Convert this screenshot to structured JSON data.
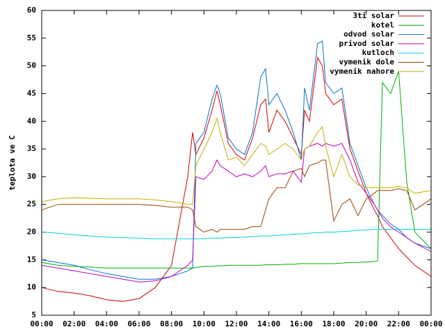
{
  "chart_data": {
    "type": "line",
    "ylabel": "teplota ve C",
    "x": [
      0,
      1,
      2,
      3,
      4,
      5,
      6,
      7,
      8,
      8.5,
      9,
      9.3,
      9.5,
      10,
      10.5,
      10.8,
      11,
      11.5,
      12,
      12.5,
      13,
      13.5,
      13.8,
      14,
      14.5,
      15,
      15.5,
      16,
      16.2,
      16.5,
      17,
      17.3,
      17.5,
      18,
      18.5,
      19,
      19.5,
      20,
      20.5,
      20.7,
      21,
      21.5,
      22,
      22.5,
      23,
      24
    ],
    "series": [
      {
        "name": "3ti solar",
        "color": "#d00000",
        "values": [
          10,
          9.3,
          9,
          8.5,
          7.8,
          7.5,
          8,
          10,
          14,
          22,
          30,
          38,
          34,
          37,
          42,
          45.5,
          43,
          36,
          34,
          33,
          37,
          43,
          44,
          38,
          42,
          40,
          37,
          34,
          42,
          40,
          51.5,
          50,
          45,
          43,
          44,
          35,
          31,
          27,
          24,
          23,
          21,
          19,
          17,
          15.5,
          14,
          12
        ]
      },
      {
        "name": "kotel",
        "color": "#00b000",
        "values": [
          14.5,
          14,
          13.8,
          13.7,
          13.5,
          13.5,
          13.5,
          13.5,
          13.5,
          13.5,
          13.5,
          13.5,
          13.6,
          13.8,
          13.8,
          13.9,
          13.9,
          14,
          14,
          14,
          14,
          14,
          14.1,
          14.1,
          14.1,
          14.2,
          14.2,
          14.3,
          14.3,
          14.3,
          14.3,
          14.3,
          14.3,
          14.3,
          14.4,
          14.5,
          14.5,
          14.6,
          14.7,
          14.8,
          47,
          45,
          49,
          29,
          20,
          17
        ]
      },
      {
        "name": "odvod solar",
        "color": "#0070d0",
        "values": [
          15,
          14.5,
          14,
          13.2,
          12.5,
          12,
          11.5,
          11.5,
          12,
          12.5,
          13,
          13.5,
          36,
          38,
          44,
          46.5,
          45,
          37,
          35,
          34,
          38,
          48,
          49.5,
          43,
          45,
          42,
          38,
          33,
          46,
          42,
          54,
          54.5,
          47,
          45,
          46,
          36,
          32,
          28,
          25,
          24,
          23,
          21.5,
          20.5,
          19,
          18,
          17
        ]
      },
      {
        "name": "privod solar",
        "color": "#c000c0",
        "values": [
          14,
          13.5,
          13,
          12.5,
          12,
          11.5,
          11,
          11.2,
          12,
          13,
          14,
          15,
          30,
          29.5,
          31,
          33,
          32,
          31,
          30,
          30.5,
          30,
          31,
          32,
          30,
          30.5,
          30.5,
          31,
          29,
          35,
          35.5,
          36,
          35.5,
          36,
          35.5,
          36,
          33,
          29,
          27,
          25,
          24,
          22.5,
          21,
          20,
          19,
          18,
          16.5
        ]
      },
      {
        "name": "kutloch",
        "color": "#00d0d0",
        "values": [
          20,
          19.8,
          19.5,
          19.3,
          19.1,
          19,
          18.9,
          18.8,
          18.8,
          18.8,
          18.8,
          18.8,
          18.8,
          18.8,
          18.9,
          18.9,
          18.9,
          19,
          19,
          19.1,
          19.2,
          19.3,
          19.3,
          19.3,
          19.4,
          19.5,
          19.6,
          19.7,
          19.7,
          19.8,
          19.9,
          19.9,
          20,
          20,
          20.1,
          20.2,
          20.3,
          20.4,
          20.5,
          20.5,
          20.5,
          20.5,
          20.5,
          20.5,
          20.5,
          20.5
        ]
      },
      {
        "name": "vymenik dole",
        "color": "#a04000",
        "values": [
          24,
          25,
          25,
          25,
          25,
          25,
          25,
          24.8,
          24.5,
          24.5,
          24.5,
          24,
          21,
          20,
          20.5,
          20,
          20.5,
          20.5,
          20.5,
          20.5,
          21,
          21,
          24,
          26,
          28,
          28,
          31,
          31.5,
          30,
          32,
          32.5,
          33,
          33,
          22,
          25,
          26,
          23,
          26,
          27,
          27.5,
          27.5,
          27.5,
          27.8,
          27.5,
          24,
          26
        ]
      },
      {
        "name": "vymenik nahore",
        "color": "#c0b000",
        "values": [
          25.5,
          26,
          26.2,
          26.1,
          26,
          26,
          26,
          25.8,
          25.5,
          25.3,
          25,
          25,
          32,
          35,
          38,
          40.5,
          38,
          33,
          33.5,
          32,
          34,
          36,
          35.5,
          34,
          35,
          36,
          35,
          33,
          35,
          35.5,
          38,
          39,
          35.5,
          30,
          34,
          30,
          28.5,
          28,
          28,
          28,
          28,
          28,
          28.2,
          28,
          27,
          27.5
        ]
      }
    ],
    "xlim": [
      0,
      24
    ],
    "xticks": [
      {
        "value": 0,
        "label": "00:00"
      },
      {
        "value": 2,
        "label": "02:00"
      },
      {
        "value": 4,
        "label": "04:00"
      },
      {
        "value": 6,
        "label": "06:00"
      },
      {
        "value": 8,
        "label": "08:00"
      },
      {
        "value": 10,
        "label": "10:00"
      },
      {
        "value": 12,
        "label": "12:00"
      },
      {
        "value": 14,
        "label": "14:00"
      },
      {
        "value": 16,
        "label": "16:00"
      },
      {
        "value": 18,
        "label": "18:00"
      },
      {
        "value": 20,
        "label": "20:00"
      },
      {
        "value": 22,
        "label": "22:00"
      },
      {
        "value": 24,
        "label": "00:00"
      }
    ],
    "ylim": [
      5,
      60
    ],
    "yticks": [
      5,
      10,
      15,
      20,
      25,
      30,
      35,
      40,
      45,
      50,
      55,
      60
    ],
    "grid": false,
    "legend": "top-right"
  }
}
